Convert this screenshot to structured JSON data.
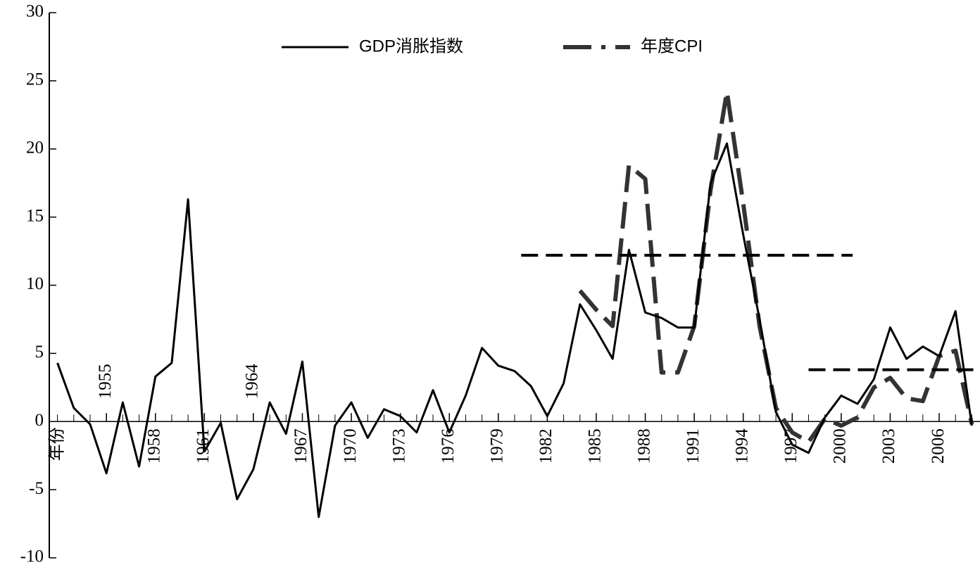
{
  "chart_data": {
    "type": "line",
    "x_label": "年份",
    "x": [
      1952,
      1953,
      1954,
      1955,
      1956,
      1957,
      1958,
      1959,
      1960,
      1961,
      1962,
      1963,
      1964,
      1965,
      1966,
      1967,
      1968,
      1969,
      1970,
      1971,
      1972,
      1973,
      1974,
      1975,
      1976,
      1977,
      1978,
      1979,
      1980,
      1981,
      1982,
      1983,
      1984,
      1985,
      1986,
      1987,
      1988,
      1989,
      1990,
      1991,
      1992,
      1993,
      1994,
      1995,
      1996,
      1997,
      1998,
      1999,
      2000,
      2001,
      2002,
      2003,
      2004,
      2005,
      2006,
      2007,
      2008
    ],
    "series": [
      {
        "name": "GDP消胀指数",
        "color": "#000000",
        "dash": "solid",
        "values": [
          4.3,
          1.0,
          -0.2,
          -3.8,
          1.4,
          -3.3,
          3.3,
          4.3,
          16.3,
          -2.2,
          -0.1,
          -5.7,
          -3.5,
          1.4,
          -0.9,
          4.4,
          -7.0,
          -0.3,
          1.4,
          -1.2,
          0.9,
          0.4,
          -0.8,
          2.3,
          -0.8,
          1.9,
          5.4,
          4.1,
          3.7,
          2.6,
          0.4,
          2.8,
          8.6,
          6.7,
          4.6,
          12.6,
          8.0,
          7.6,
          6.9,
          6.9,
          17.5,
          20.4,
          13.7,
          7.5,
          0.7,
          -1.7,
          -2.3,
          0.3,
          1.9,
          1.3,
          3.1,
          6.9,
          4.6,
          5.5,
          4.8,
          8.1,
          -0.3
        ]
      },
      {
        "name": "年度CPI",
        "color": "#333333",
        "dash": "dashed",
        "values": [
          null,
          null,
          null,
          null,
          null,
          null,
          null,
          null,
          null,
          null,
          null,
          null,
          null,
          null,
          null,
          null,
          null,
          null,
          null,
          null,
          null,
          null,
          null,
          null,
          null,
          null,
          null,
          null,
          null,
          null,
          null,
          null,
          9.6,
          8.2,
          7.0,
          18.8,
          17.8,
          3.6,
          3.6,
          7.0,
          17.0,
          24.2,
          16.0,
          7.0,
          1.0,
          -0.8,
          -1.5,
          0.2,
          -0.3,
          0.3,
          2.5,
          3.2,
          1.7,
          1.5,
          4.8,
          5.2,
          -0.2
        ]
      }
    ],
    "reference_lines": [
      {
        "value": 12.2,
        "x": [
          1980.4,
          2000.7
        ],
        "color": "#000000"
      },
      {
        "value": 3.8,
        "x": [
          1998.0,
          2008.5
        ],
        "color": "#000000"
      }
    ],
    "xlim": [
      1951.5,
      2008.5
    ],
    "xticks": [
      1955,
      1958,
      1961,
      1964,
      1967,
      1970,
      1973,
      1976,
      1979,
      1982,
      1985,
      1988,
      1991,
      1994,
      1997,
      2000,
      2003,
      2006
    ],
    "ylim": [
      -10,
      30
    ],
    "yticks": [
      -10,
      -5,
      0,
      5,
      10,
      15,
      20,
      25,
      30
    ]
  }
}
